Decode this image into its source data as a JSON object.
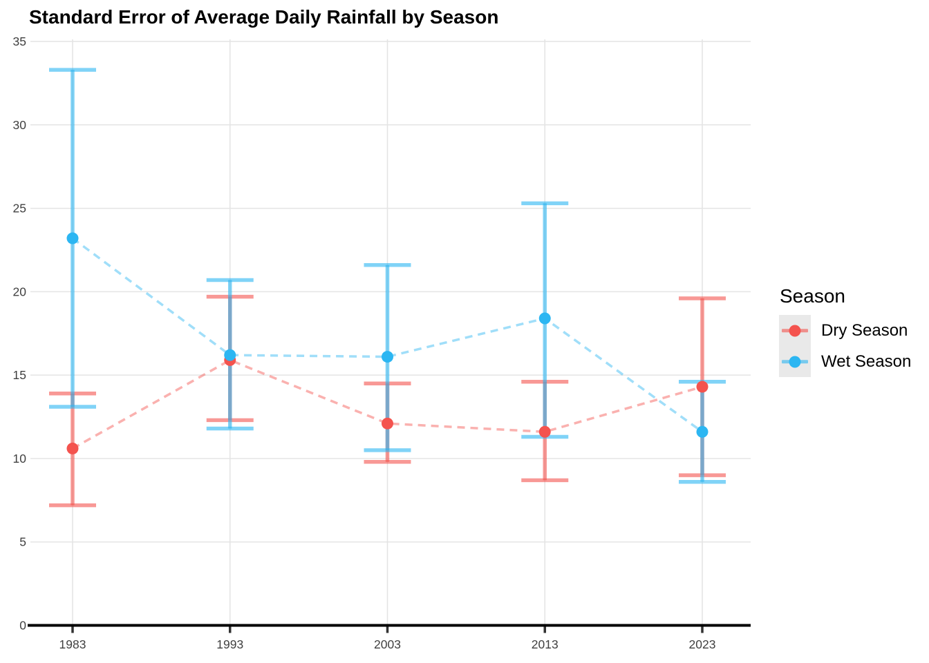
{
  "chart_data": {
    "type": "line",
    "subtype": "points-with-error-bars",
    "title": "Standard Error of Average Daily Rainfall by Season",
    "xlabel": "",
    "ylabel": "",
    "categories": [
      "1983",
      "1993",
      "2003",
      "2013",
      "2023"
    ],
    "series": [
      {
        "name": "Dry Season",
        "color": "#F4534E",
        "values": [
          10.6,
          15.9,
          12.1,
          11.6,
          14.3
        ],
        "error_low": [
          7.2,
          12.3,
          9.8,
          8.7,
          9.0
        ],
        "error_high": [
          13.9,
          19.7,
          14.5,
          14.6,
          19.6
        ]
      },
      {
        "name": "Wet Season",
        "color": "#2CB6F2",
        "values": [
          23.2,
          16.2,
          16.1,
          18.4,
          11.6
        ],
        "error_low": [
          13.1,
          11.8,
          10.5,
          11.3,
          8.6
        ],
        "error_high": [
          33.3,
          20.7,
          21.6,
          25.3,
          14.6
        ]
      }
    ],
    "ylim": [
      0,
      35
    ],
    "yticks": [
      0,
      5,
      10,
      15,
      20,
      25,
      30,
      35
    ],
    "grid": true,
    "line_style": "dashed",
    "legend_title": "Season",
    "legend_position": "right"
  },
  "styles": {
    "background": "#FFFFFF",
    "grid_color": "#E4E4E4",
    "axis_line_color": "#000000",
    "tick_mark_color": "#333333",
    "tick_label_color": "#404040",
    "title_color": "#000000",
    "legend_key_bg": "#E9E9E9"
  }
}
